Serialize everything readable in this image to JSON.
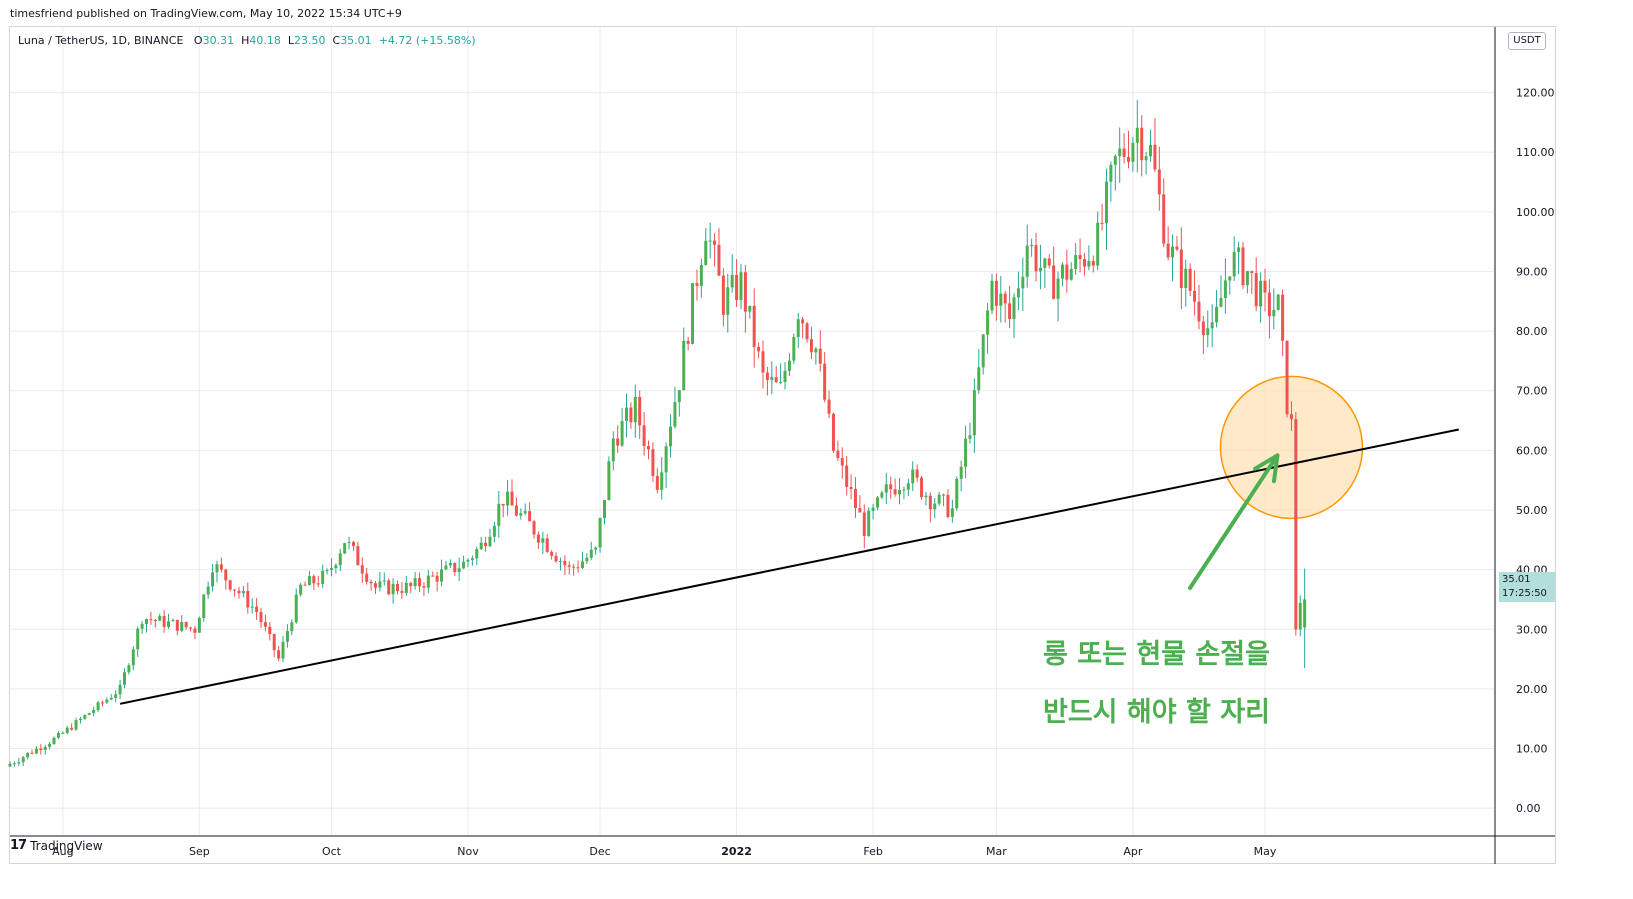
{
  "header": {
    "published": "timesfriend published on TradingView.com, May 10, 2022 15:34 UTC+9"
  },
  "legend": {
    "symbol": "Luna / TetherUS, 1D, BINANCE",
    "open_label": "O",
    "open": "30.31",
    "high_label": "H",
    "high": "40.18",
    "low_label": "L",
    "low": "23.50",
    "close_label": "C",
    "close": "35.01",
    "change": "+4.72 (+15.58%)"
  },
  "price_scale": {
    "unit": "USDT",
    "last_price": "35.01",
    "countdown": "17:25:50"
  },
  "annotation": {
    "line1": "롱 또는 현물 손절을",
    "line2": "반드시 해야 할 자리"
  },
  "footer": {
    "brand": "TradingView"
  },
  "colors": {
    "up": "#4caf50",
    "down": "#ef5350",
    "wick_up": "#26a69a",
    "trendline": "#000000",
    "circle_fill": "#ffe0b2",
    "circle_stroke": "#ff9800",
    "arrow": "#4caf50",
    "grid": "#e9ebef"
  },
  "chart_data": {
    "type": "candlestick",
    "title": "Luna / TetherUS, 1D, BINANCE",
    "y_ticks": [
      "0.00",
      "10.00",
      "20.00",
      "30.00",
      "40.00",
      "50.00",
      "60.00",
      "70.00",
      "80.00",
      "90.00",
      "100.00",
      "110.00",
      "120.00"
    ],
    "ylim": [
      -4.5,
      131
    ],
    "x_ticks": [
      "Aug",
      "Sep",
      "Oct",
      "Nov",
      "Dec",
      "2022",
      "Feb",
      "Mar",
      "Apr",
      "May"
    ],
    "x_range": [
      "2021-07-20",
      "2022-06-22"
    ],
    "grid": true,
    "trendline": {
      "from": {
        "date": "2021-08-14",
        "price": 17.5
      },
      "to": {
        "date": "2022-06-14",
        "price": 63.5
      }
    },
    "highlight_circle": {
      "date": "2022-05-07",
      "price": 60.5
    },
    "series": [
      {
        "name": "LUNAUSDT",
        "monthly_path": [
          {
            "date": "2021-07-20",
            "price": 7
          },
          {
            "date": "2021-08-01",
            "price": 12
          },
          {
            "date": "2021-08-15",
            "price": 20
          },
          {
            "date": "2021-08-20",
            "price": 32
          },
          {
            "date": "2021-09-01",
            "price": 30
          },
          {
            "date": "2021-09-05",
            "price": 41
          },
          {
            "date": "2021-09-15",
            "price": 33
          },
          {
            "date": "2021-09-20",
            "price": 25
          },
          {
            "date": "2021-09-25",
            "price": 37
          },
          {
            "date": "2021-10-01",
            "price": 39
          },
          {
            "date": "2021-10-05",
            "price": 45
          },
          {
            "date": "2021-10-12",
            "price": 37
          },
          {
            "date": "2021-10-20",
            "price": 37
          },
          {
            "date": "2021-11-01",
            "price": 41
          },
          {
            "date": "2021-11-05",
            "price": 44
          },
          {
            "date": "2021-11-10",
            "price": 52
          },
          {
            "date": "2021-11-18",
            "price": 46
          },
          {
            "date": "2021-11-25",
            "price": 40
          },
          {
            "date": "2021-12-01",
            "price": 43
          },
          {
            "date": "2021-12-05",
            "price": 62
          },
          {
            "date": "2021-12-10",
            "price": 67
          },
          {
            "date": "2021-12-15",
            "price": 55
          },
          {
            "date": "2021-12-20",
            "price": 72
          },
          {
            "date": "2021-12-26",
            "price": 98
          },
          {
            "date": "2021-12-30",
            "price": 85
          },
          {
            "date": "2022-01-03",
            "price": 88
          },
          {
            "date": "2022-01-08",
            "price": 72
          },
          {
            "date": "2022-01-12",
            "price": 70
          },
          {
            "date": "2022-01-16",
            "price": 84
          },
          {
            "date": "2022-01-20",
            "price": 77
          },
          {
            "date": "2022-01-24",
            "price": 60
          },
          {
            "date": "2022-01-31",
            "price": 47
          },
          {
            "date": "2022-02-05",
            "price": 53
          },
          {
            "date": "2022-02-10",
            "price": 56
          },
          {
            "date": "2022-02-15",
            "price": 52
          },
          {
            "date": "2022-02-20",
            "price": 50
          },
          {
            "date": "2022-02-25",
            "price": 68
          },
          {
            "date": "2022-03-01",
            "price": 88
          },
          {
            "date": "2022-03-05",
            "price": 82
          },
          {
            "date": "2022-03-09",
            "price": 95
          },
          {
            "date": "2022-03-14",
            "price": 88
          },
          {
            "date": "2022-03-20",
            "price": 91
          },
          {
            "date": "2022-03-25",
            "price": 95
          },
          {
            "date": "2022-03-29",
            "price": 108
          },
          {
            "date": "2022-04-03",
            "price": 114
          },
          {
            "date": "2022-04-06",
            "price": 110
          },
          {
            "date": "2022-04-10",
            "price": 94
          },
          {
            "date": "2022-04-15",
            "price": 87
          },
          {
            "date": "2022-04-20",
            "price": 79
          },
          {
            "date": "2022-04-24",
            "price": 92
          },
          {
            "date": "2022-04-28",
            "price": 90
          },
          {
            "date": "2022-05-02",
            "price": 84
          },
          {
            "date": "2022-05-05",
            "price": 84
          },
          {
            "date": "2022-05-07",
            "price": 68
          },
          {
            "date": "2022-05-08",
            "price": 64
          },
          {
            "date": "2022-05-09",
            "price": 30.31
          },
          {
            "date": "2022-05-10",
            "price": 35.01
          }
        ]
      }
    ]
  }
}
